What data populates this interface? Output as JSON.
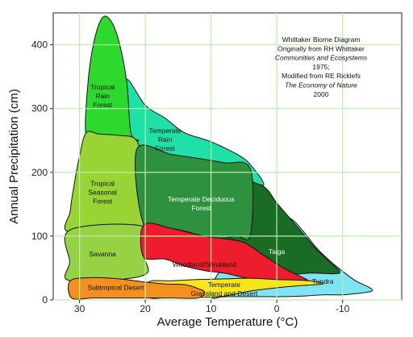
{
  "chart_data": {
    "type": "area",
    "title": "",
    "xlabel": "Average Temperature (°C)",
    "ylabel": "Annual Precipitation (cm)",
    "x_reversed": true,
    "xlim": [
      34,
      -19
    ],
    "ylim": [
      0,
      450
    ],
    "x_ticks": [
      30,
      20,
      10,
      0,
      -10
    ],
    "x_tick_labels": [
      "30",
      "20",
      "10",
      "0",
      "-10"
    ],
    "y_ticks": [
      0,
      100,
      200,
      300,
      400
    ],
    "y_tick_labels": [
      "0",
      "100",
      "200",
      "300",
      "400"
    ],
    "grid": true,
    "annotation_lines": [
      {
        "text": "Whittaker Biome Diagram",
        "italic": false
      },
      {
        "text": "Originally from RH Whittaker",
        "italic": false
      },
      {
        "text": "Communities and Ecosystems",
        "italic": true
      },
      {
        "text": "1975;",
        "italic": false
      },
      {
        "text": "Modified from RE Ricklefs",
        "italic": false
      },
      {
        "text": "The Economy of Nature",
        "italic": true
      },
      {
        "text": "2000",
        "italic": false
      }
    ],
    "biomes": [
      {
        "name": "Tundra",
        "color": "#7ee3f2",
        "label_lines": [
          "Tundra"
        ],
        "label_at": [
          -7,
          25
        ],
        "boundary": [
          [
            -2,
            128
          ],
          [
            -4,
            108
          ],
          [
            -6,
            82
          ],
          [
            -8,
            62
          ],
          [
            -10,
            45
          ],
          [
            -12,
            30
          ],
          [
            -14,
            20
          ],
          [
            -14.5,
            14
          ],
          [
            -13,
            11
          ],
          [
            -10,
            8
          ],
          [
            -7,
            8
          ],
          [
            -4,
            6
          ],
          [
            -1,
            5
          ],
          [
            2,
            5
          ],
          [
            5,
            5
          ],
          [
            8,
            5
          ],
          [
            10,
            5
          ],
          [
            9,
            40
          ],
          [
            6,
            60
          ],
          [
            3,
            80
          ],
          [
            1,
            110
          ],
          [
            0,
            125
          ]
        ]
      },
      {
        "name": "Taiga",
        "color": "#1a6b23",
        "label_lines": [
          "Taiga"
        ],
        "label_at": [
          0,
          72
        ],
        "boundary": [
          [
            6,
            195
          ],
          [
            2,
            178
          ],
          [
            0,
            152
          ],
          [
            -2,
            128
          ],
          [
            -4,
            104
          ],
          [
            -6,
            80
          ],
          [
            -8,
            60
          ],
          [
            -9.5,
            42
          ],
          [
            -5,
            42
          ],
          [
            -1,
            38
          ],
          [
            2,
            38
          ],
          [
            5,
            50
          ],
          [
            7,
            80
          ],
          [
            8,
            120
          ],
          [
            7,
            165
          ]
        ]
      },
      {
        "name": "Temperate Rain Forest",
        "color": "#1fe0a6",
        "label_lines": [
          "Temperate",
          "Rain",
          "Forest"
        ],
        "label_at": [
          17,
          248
        ],
        "boundary": [
          [
            23,
            345
          ],
          [
            20,
            305
          ],
          [
            17,
            285
          ],
          [
            14,
            262
          ],
          [
            10,
            248
          ],
          [
            6,
            228
          ],
          [
            4,
            212
          ],
          [
            2,
            180
          ],
          [
            6,
            195
          ],
          [
            10,
            200
          ],
          [
            14,
            202
          ],
          [
            19,
            204
          ],
          [
            22,
            208
          ],
          [
            23,
            255
          ]
        ]
      },
      {
        "name": "Tropical Rain Forest",
        "color": "#2ed92e",
        "label_lines": [
          "Tropical",
          "Rain",
          "Forest"
        ],
        "label_at": [
          26.5,
          316
        ],
        "boundary": [
          [
            29,
            258
          ],
          [
            28.8,
            330
          ],
          [
            28,
            395
          ],
          [
            26.7,
            440
          ],
          [
            25.4,
            440
          ],
          [
            24,
            405
          ],
          [
            22.8,
            340
          ],
          [
            22.2,
            262
          ],
          [
            21,
            250
          ],
          [
            24,
            251
          ],
          [
            27,
            253
          ]
        ]
      },
      {
        "name": "Tropical Seasonal Forest",
        "color": "#9ad334",
        "label_lines": [
          "Tropical",
          "Seasonal",
          "Forest"
        ],
        "label_at": [
          26.5,
          165
        ],
        "boundary": [
          [
            29,
            262
          ],
          [
            30,
            225
          ],
          [
            30.8,
            182
          ],
          [
            31.4,
            140
          ],
          [
            31.4,
            105
          ],
          [
            20.2,
            107
          ],
          [
            20.3,
            170
          ],
          [
            20.5,
            220
          ],
          [
            21.5,
            252
          ],
          [
            24,
            258
          ],
          [
            27,
            260
          ]
        ]
      },
      {
        "name": "Temperate Deciduous Forest",
        "color": "#2e9140",
        "label_lines": [
          "Temperate Deciduous",
          "Forest"
        ],
        "label_at": [
          11.5,
          147
        ],
        "boundary": [
          [
            21.3,
            236
          ],
          [
            16,
            228
          ],
          [
            12,
            222
          ],
          [
            8,
            215
          ],
          [
            4,
            205
          ],
          [
            4,
            102
          ],
          [
            6,
            100
          ],
          [
            8,
            97
          ],
          [
            11,
            96
          ],
          [
            13,
            105
          ],
          [
            16,
            112
          ],
          [
            20.2,
            117
          ]
        ]
      },
      {
        "name": "Savanna",
        "color": "#96d244",
        "label_lines": [
          "Savanna"
        ],
        "label_at": [
          26.5,
          68
        ],
        "boundary": [
          [
            31.4,
            110
          ],
          [
            31.5,
            60
          ],
          [
            31.4,
            30
          ],
          [
            20.4,
            38
          ],
          [
            20.2,
            70
          ],
          [
            20.2,
            115
          ]
        ]
      },
      {
        "name": "Woodland/Shrubland",
        "color": "#ee1d2e",
        "label_lines": [
          "Woodland/Shrubland"
        ],
        "label_at": [
          11,
          52
        ],
        "boundary": [
          [
            20.2,
            118
          ],
          [
            16,
            112
          ],
          [
            11,
            100
          ],
          [
            8,
            96
          ],
          [
            5,
            90
          ],
          [
            2,
            70
          ],
          [
            -1,
            50
          ],
          [
            -5,
            28
          ],
          [
            -1,
            28
          ],
          [
            2,
            30
          ],
          [
            5,
            35
          ],
          [
            8,
            42
          ],
          [
            11,
            46
          ],
          [
            14,
            53
          ],
          [
            17,
            64
          ],
          [
            20.3,
            68
          ]
        ]
      },
      {
        "name": "Temperate Grassland and Desert",
        "color": "#f7e718",
        "label_lines": [
          "Temperate",
          "Grassland and Desert"
        ],
        "label_at": [
          8,
          13
        ],
        "boundary": [
          [
            19.5,
            28
          ],
          [
            16,
            30
          ],
          [
            12,
            32
          ],
          [
            8,
            33
          ],
          [
            4,
            34
          ],
          [
            0,
            32
          ],
          [
            -5,
            30
          ],
          [
            -7,
            25
          ],
          [
            -3,
            22
          ],
          [
            0,
            19
          ],
          [
            4,
            14
          ],
          [
            8,
            6
          ],
          [
            12,
            4
          ],
          [
            16,
            4
          ],
          [
            19.5,
            4
          ]
        ]
      },
      {
        "name": "Subtropical Desert",
        "color": "#f4901d",
        "label_lines": [
          "Subtropical Desert"
        ],
        "label_at": [
          24.5,
          16
        ],
        "boundary": [
          [
            31.4,
            30
          ],
          [
            28,
            35
          ],
          [
            24,
            33
          ],
          [
            20,
            28
          ],
          [
            17,
            25
          ],
          [
            14,
            24
          ],
          [
            12,
            18
          ],
          [
            11,
            12
          ],
          [
            12,
            3
          ],
          [
            16,
            3
          ],
          [
            20,
            3
          ],
          [
            24,
            3
          ],
          [
            28,
            3
          ],
          [
            31.2,
            3
          ]
        ]
      }
    ]
  }
}
